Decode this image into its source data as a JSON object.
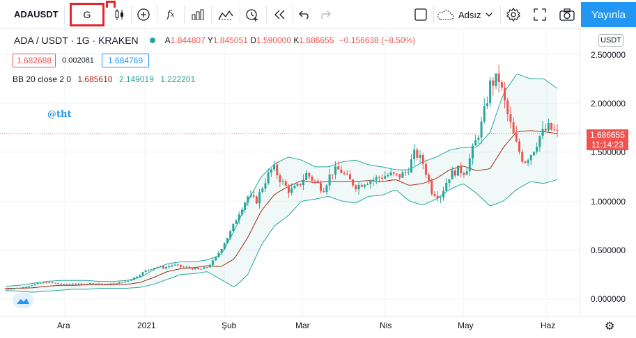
{
  "toolbar": {
    "symbol": "ADAUSDT",
    "interval": "G",
    "layout_name": "Adsız",
    "publish_label": "Yayınla",
    "icons": [
      "candles-icon",
      "add-icon",
      "fx-icon",
      "bars-icon",
      "compare-icon",
      "alert-icon",
      "replay-icon",
      "undo-icon",
      "redo-icon",
      "square-icon",
      "cloud-icon",
      "settings-icon",
      "fullscreen-icon",
      "camera-icon"
    ]
  },
  "legend": {
    "title": "ADA / USDT · 1G · KRAKEN",
    "ohlc": [
      {
        "label": "A",
        "value": "1.844807"
      },
      {
        "label": "Y",
        "value": "1.845051"
      },
      {
        "label": "D",
        "value": "1.590000"
      },
      {
        "label": "K",
        "value": "1.686655"
      }
    ],
    "change": "−0.156638 (−8.50%)",
    "bid": "1.682688",
    "spread": "0.002081",
    "ask": "1.684769",
    "bb_name": "BB 20 close 2 0",
    "bb_values": [
      "1.685610",
      "2.149019",
      "1.222201"
    ]
  },
  "watermark": "@tht",
  "price_axis": {
    "currency": "USDT",
    "labels": [
      "2.500000",
      "2.000000",
      "1.500000",
      "1.000000",
      "0.500000",
      "0.000000"
    ],
    "last_price": "1.686655",
    "countdown": "11:14:23"
  },
  "time_axis": {
    "labels": [
      "Ara",
      "2021",
      "Şub",
      "Mar",
      "Nis",
      "May",
      "Haz"
    ]
  },
  "colors": {
    "up": "#26a69a",
    "down": "#ef5350",
    "accent": "#2196f3",
    "band": "#26a69a",
    "basis": "#a52714"
  },
  "chart_data": {
    "type": "candlestick",
    "title": "ADA / USDT · 1G · KRAKEN",
    "ylim": [
      -0.1,
      2.7
    ],
    "x_ticks": [
      "Ara",
      "2021",
      "Şub",
      "Mar",
      "Nis",
      "May",
      "Haz"
    ],
    "close_path": [
      0.105,
      0.11,
      0.12,
      0.14,
      0.16,
      0.17,
      0.16,
      0.15,
      0.16,
      0.15,
      0.16,
      0.16,
      0.15,
      0.16,
      0.17,
      0.2,
      0.25,
      0.3,
      0.33,
      0.32,
      0.35,
      0.33,
      0.32,
      0.3,
      0.32,
      0.4,
      0.55,
      0.7,
      0.9,
      1.05,
      1.0,
      1.2,
      1.35,
      1.2,
      1.1,
      1.15,
      1.28,
      1.2,
      1.12,
      1.3,
      1.32,
      1.22,
      1.15,
      1.2,
      1.22,
      1.25,
      1.27,
      1.25,
      1.3,
      1.5,
      1.38,
      1.1,
      1.05,
      1.25,
      1.32,
      1.3,
      1.55,
      1.8,
      2.2,
      2.25,
      1.9,
      1.6,
      1.4,
      1.5,
      1.68,
      1.75,
      1.69
    ],
    "bb_upper_path": [
      0.13,
      0.14,
      0.16,
      0.18,
      0.19,
      0.19,
      0.19,
      0.18,
      0.18,
      0.19,
      0.22,
      0.3,
      0.36,
      0.38,
      0.38,
      0.4,
      0.45,
      0.7,
      1.0,
      1.25,
      1.38,
      1.45,
      1.42,
      1.35,
      1.35,
      1.4,
      1.42,
      1.37,
      1.35,
      1.32,
      1.32,
      1.4,
      1.45,
      1.52,
      1.55,
      1.55,
      1.7,
      2.1,
      2.3,
      2.25,
      2.25,
      2.15
    ],
    "bb_lower_path": [
      0.09,
      0.08,
      0.07,
      0.08,
      0.09,
      0.1,
      0.1,
      0.11,
      0.11,
      0.11,
      0.12,
      0.15,
      0.2,
      0.25,
      0.26,
      0.28,
      0.2,
      0.12,
      0.25,
      0.55,
      0.75,
      0.85,
      1.0,
      1.02,
      1.05,
      1.0,
      0.98,
      1.05,
      1.06,
      1.12,
      1.0,
      0.96,
      1.02,
      1.12,
      1.18,
      1.08,
      0.95,
      1.0,
      1.12,
      1.2,
      1.18,
      1.22
    ],
    "bb_basis_path": [
      0.11,
      0.11,
      0.115,
      0.13,
      0.14,
      0.14,
      0.145,
      0.145,
      0.145,
      0.15,
      0.17,
      0.22,
      0.28,
      0.31,
      0.32,
      0.34,
      0.33,
      0.41,
      0.63,
      0.9,
      1.07,
      1.15,
      1.21,
      1.19,
      1.2,
      1.2,
      1.2,
      1.21,
      1.2,
      1.22,
      1.16,
      1.18,
      1.23,
      1.32,
      1.36,
      1.31,
      1.33,
      1.55,
      1.71,
      1.72,
      1.71,
      1.69
    ],
    "last_price": 1.686655
  }
}
